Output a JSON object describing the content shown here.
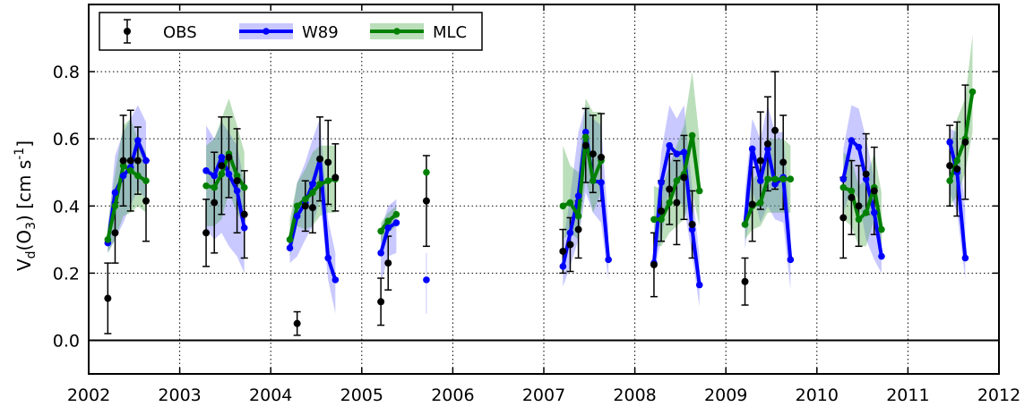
{
  "chart_data": {
    "type": "line",
    "title": "",
    "xlabel": "",
    "ylabel": {
      "prefix": "V",
      "prefix_sub": "d",
      "mid": "(O",
      "mid_sub": "3",
      "suffix": ") [cm s",
      "suffix_sup": "-1",
      "end": "]"
    },
    "xlim": [
      2002.0,
      2012.0
    ],
    "ylim": [
      -0.1,
      1.0
    ],
    "x_ticks": [
      2002,
      2003,
      2004,
      2005,
      2006,
      2007,
      2008,
      2009,
      2010,
      2011,
      2012
    ],
    "x_tick_labels": [
      "2002",
      "2003",
      "2004",
      "2005",
      "2006",
      "2007",
      "2008",
      "2009",
      "2010",
      "2011",
      "2012"
    ],
    "y_ticks": [
      0.0,
      0.2,
      0.4,
      0.6,
      0.8
    ],
    "y_tick_labels": [
      "0.0",
      "0.2",
      "0.4",
      "0.6",
      "0.8"
    ],
    "grid": "dotted",
    "zero_line": 0.0,
    "legend": {
      "placement": "top-left",
      "entries": [
        {
          "label": "OBS",
          "color": "#000000",
          "style": "errorbar"
        },
        {
          "label": "W89",
          "color": "#0000ff",
          "style": "line-band"
        },
        {
          "label": "MLC",
          "color": "#008000",
          "style": "line-band"
        }
      ]
    },
    "series": [
      {
        "name": "OBS",
        "color": "#000000",
        "type": "errorbar",
        "x": [
          2002.21,
          2002.29,
          2002.38,
          2002.46,
          2002.54,
          2002.63,
          2003.29,
          2003.38,
          2003.46,
          2003.54,
          2003.63,
          2003.71,
          2004.29,
          2004.38,
          2004.46,
          2004.54,
          2004.63,
          2004.71,
          2005.21,
          2005.29,
          2005.71,
          2007.21,
          2007.29,
          2007.38,
          2007.46,
          2007.54,
          2007.63,
          2008.21,
          2008.29,
          2008.38,
          2008.46,
          2008.54,
          2008.63,
          2009.21,
          2009.29,
          2009.38,
          2009.46,
          2009.54,
          2009.63,
          2010.29,
          2010.38,
          2010.46,
          2010.54,
          2010.63,
          2011.46,
          2011.54,
          2011.63
        ],
        "y": [
          0.125,
          0.32,
          0.535,
          0.535,
          0.535,
          0.415,
          0.32,
          0.41,
          0.52,
          0.545,
          0.475,
          0.375,
          0.05,
          0.4,
          0.395,
          0.54,
          0.53,
          0.485,
          0.115,
          0.23,
          0.415,
          0.265,
          0.285,
          0.33,
          0.58,
          0.555,
          0.545,
          0.225,
          0.385,
          0.45,
          0.41,
          0.485,
          0.345,
          0.175,
          0.405,
          0.535,
          0.585,
          0.625,
          0.53,
          0.365,
          0.425,
          0.4,
          0.495,
          0.445,
          0.52,
          0.51,
          0.59
        ],
        "yerr": [
          0.105,
          0.09,
          0.135,
          0.15,
          0.1,
          0.12,
          0.1,
          0.15,
          0.145,
          0.12,
          0.155,
          0.13,
          0.035,
          0.075,
          0.075,
          0.125,
          0.125,
          0.1,
          0.07,
          0.08,
          0.135,
          0.065,
          0.08,
          0.085,
          0.11,
          0.115,
          0.13,
          0.095,
          0.09,
          0.105,
          0.125,
          0.125,
          0.1,
          0.07,
          0.11,
          0.145,
          0.14,
          0.175,
          0.14,
          0.12,
          0.11,
          0.12,
          0.12,
          0.13,
          0.12,
          0.14,
          0.17
        ]
      },
      {
        "name": "W89",
        "color": "#0000ff",
        "band_color": "rgba(120,120,255,0.40)",
        "type": "line-band",
        "segments": [
          {
            "x": [
              2002.21,
              2002.29,
              2002.38,
              2002.46,
              2002.54,
              2002.63
            ],
            "y": [
              0.29,
              0.44,
              0.49,
              0.515,
              0.595,
              0.535
            ],
            "lo": [
              0.26,
              0.3,
              0.35,
              0.4,
              0.45,
              0.42
            ],
            "hi": [
              0.33,
              0.55,
              0.62,
              0.66,
              0.7,
              0.65
            ]
          },
          {
            "x": [
              2003.29,
              2003.38,
              2003.46,
              2003.54,
              2003.63,
              2003.71
            ],
            "y": [
              0.505,
              0.49,
              0.545,
              0.495,
              0.445,
              0.335
            ],
            "lo": [
              0.33,
              0.3,
              0.32,
              0.28,
              0.25,
              0.2
            ],
            "hi": [
              0.64,
              0.6,
              0.65,
              0.62,
              0.58,
              0.47
            ]
          },
          {
            "x": [
              2004.21,
              2004.29,
              2004.38,
              2004.46,
              2004.54,
              2004.63,
              2004.71
            ],
            "y": [
              0.275,
              0.37,
              0.41,
              0.465,
              0.54,
              0.245,
              0.18
            ],
            "lo": [
              0.23,
              0.25,
              0.3,
              0.34,
              0.42,
              0.18,
              0.08
            ],
            "hi": [
              0.33,
              0.47,
              0.53,
              0.6,
              0.66,
              0.36,
              0.26
            ]
          },
          {
            "x": [
              2005.21,
              2005.29,
              2005.38
            ],
            "y": [
              0.26,
              0.335,
              0.35
            ],
            "lo": [
              0.17,
              0.25,
              0.26
            ],
            "hi": [
              0.33,
              0.4,
              0.42
            ]
          },
          {
            "x": [
              2005.71
            ],
            "y": [
              0.18
            ],
            "lo": [
              0.08
            ],
            "hi": [
              0.26
            ]
          },
          {
            "x": [
              2007.21,
              2007.29,
              2007.38,
              2007.46,
              2007.54,
              2007.63,
              2007.71
            ],
            "y": [
              0.22,
              0.32,
              0.43,
              0.62,
              0.475,
              0.47,
              0.24
            ],
            "lo": [
              0.16,
              0.22,
              0.3,
              0.44,
              0.38,
              0.35,
              0.18
            ],
            "hi": [
              0.28,
              0.43,
              0.62,
              0.7,
              0.66,
              0.64,
              0.34
            ]
          },
          {
            "x": [
              2008.21,
              2008.29,
              2008.38,
              2008.46,
              2008.54,
              2008.63,
              2008.71
            ],
            "y": [
              0.23,
              0.47,
              0.58,
              0.555,
              0.56,
              0.33,
              0.165
            ],
            "lo": [
              0.2,
              0.3,
              0.46,
              0.42,
              0.4,
              0.25,
              0.1
            ],
            "hi": [
              0.3,
              0.56,
              0.7,
              0.66,
              0.7,
              0.45,
              0.25
            ]
          },
          {
            "x": [
              2009.21,
              2009.29,
              2009.38,
              2009.46,
              2009.54,
              2009.63,
              2009.71
            ],
            "y": [
              0.345,
              0.57,
              0.475,
              0.57,
              0.465,
              0.485,
              0.24
            ],
            "lo": [
              0.27,
              0.45,
              0.35,
              0.4,
              0.36,
              0.35,
              0.15
            ],
            "hi": [
              0.44,
              0.66,
              0.6,
              0.7,
              0.62,
              0.62,
              0.34
            ]
          },
          {
            "x": [
              2010.29,
              2010.38,
              2010.46,
              2010.54,
              2010.63,
              2010.71
            ],
            "y": [
              0.48,
              0.595,
              0.575,
              0.48,
              0.38,
              0.25
            ],
            "lo": [
              0.38,
              0.45,
              0.42,
              0.3,
              0.24,
              0.2
            ],
            "hi": [
              0.57,
              0.7,
              0.69,
              0.6,
              0.48,
              0.35
            ]
          },
          {
            "x": [
              2011.46,
              2011.54,
              2011.63
            ],
            "y": [
              0.59,
              0.5,
              0.245
            ],
            "lo": [
              0.44,
              0.38,
              0.18
            ],
            "hi": [
              0.63,
              0.62,
              0.39
            ]
          }
        ]
      },
      {
        "name": "MLC",
        "color": "#008000",
        "band_color": "rgba(60,160,60,0.35)",
        "type": "line-band",
        "segments": [
          {
            "x": [
              2002.21,
              2002.29,
              2002.38,
              2002.46,
              2002.54,
              2002.63
            ],
            "y": [
              0.3,
              0.4,
              0.52,
              0.505,
              0.49,
              0.475
            ],
            "lo": [
              0.26,
              0.3,
              0.37,
              0.38,
              0.4,
              0.38
            ],
            "hi": [
              0.34,
              0.5,
              0.64,
              0.66,
              0.6,
              0.56
            ]
          },
          {
            "x": [
              2003.29,
              2003.38,
              2003.46,
              2003.54,
              2003.63,
              2003.71
            ],
            "y": [
              0.46,
              0.455,
              0.495,
              0.555,
              0.49,
              0.455
            ],
            "lo": [
              0.34,
              0.34,
              0.36,
              0.44,
              0.38,
              0.34
            ],
            "hi": [
              0.58,
              0.6,
              0.66,
              0.72,
              0.64,
              0.56
            ]
          },
          {
            "x": [
              2004.21,
              2004.29,
              2004.38,
              2004.46,
              2004.54,
              2004.63,
              2004.71
            ],
            "y": [
              0.3,
              0.4,
              0.42,
              0.44,
              0.465,
              0.475,
              0.48
            ],
            "lo": [
              0.25,
              0.34,
              0.33,
              0.34,
              0.37,
              0.38,
              0.38
            ],
            "hi": [
              0.36,
              0.47,
              0.51,
              0.56,
              0.58,
              0.58,
              0.58
            ]
          },
          {
            "x": [
              2005.21,
              2005.29,
              2005.38
            ],
            "y": [
              0.325,
              0.355,
              0.375
            ],
            "lo": [
              0.29,
              0.32,
              0.34
            ],
            "hi": [
              0.35,
              0.38,
              0.4
            ]
          },
          {
            "x": [
              2005.71
            ],
            "y": [
              0.5
            ],
            "lo": [
              0.47
            ],
            "hi": [
              0.53
            ]
          },
          {
            "x": [
              2007.21,
              2007.29,
              2007.38,
              2007.46,
              2007.54,
              2007.63
            ],
            "y": [
              0.4,
              0.41,
              0.37,
              0.605,
              0.475,
              0.535
            ],
            "lo": [
              0.3,
              0.32,
              0.3,
              0.48,
              0.38,
              0.44
            ],
            "hi": [
              0.58,
              0.52,
              0.5,
              0.72,
              0.68,
              0.68
            ]
          },
          {
            "x": [
              2008.21,
              2008.29,
              2008.38,
              2008.46,
              2008.54,
              2008.63,
              2008.71
            ],
            "y": [
              0.36,
              0.36,
              0.41,
              0.475,
              0.495,
              0.61,
              0.445
            ],
            "lo": [
              0.28,
              0.28,
              0.32,
              0.34,
              0.36,
              0.44,
              0.34
            ],
            "hi": [
              0.46,
              0.45,
              0.52,
              0.58,
              0.64,
              0.8,
              0.6
            ]
          },
          {
            "x": [
              2009.21,
              2009.29,
              2009.38,
              2009.46,
              2009.54,
              2009.63,
              2009.71
            ],
            "y": [
              0.345,
              0.4,
              0.41,
              0.48,
              0.48,
              0.48,
              0.48
            ],
            "lo": [
              0.3,
              0.33,
              0.34,
              0.38,
              0.38,
              0.38,
              0.38
            ],
            "hi": [
              0.4,
              0.48,
              0.5,
              0.6,
              0.6,
              0.6,
              0.58
            ]
          },
          {
            "x": [
              2010.29,
              2010.38,
              2010.46,
              2010.54,
              2010.63,
              2010.71
            ],
            "y": [
              0.455,
              0.445,
              0.36,
              0.38,
              0.455,
              0.33
            ],
            "lo": [
              0.36,
              0.34,
              0.28,
              0.28,
              0.36,
              0.25
            ],
            "hi": [
              0.56,
              0.54,
              0.46,
              0.48,
              0.56,
              0.44
            ]
          },
          {
            "x": [
              2011.46,
              2011.54,
              2011.63,
              2011.71
            ],
            "y": [
              0.475,
              0.535,
              0.6,
              0.74
            ],
            "lo": [
              0.4,
              0.43,
              0.5,
              0.62
            ],
            "hi": [
              0.56,
              0.66,
              0.72,
              0.91
            ]
          }
        ]
      }
    ]
  }
}
